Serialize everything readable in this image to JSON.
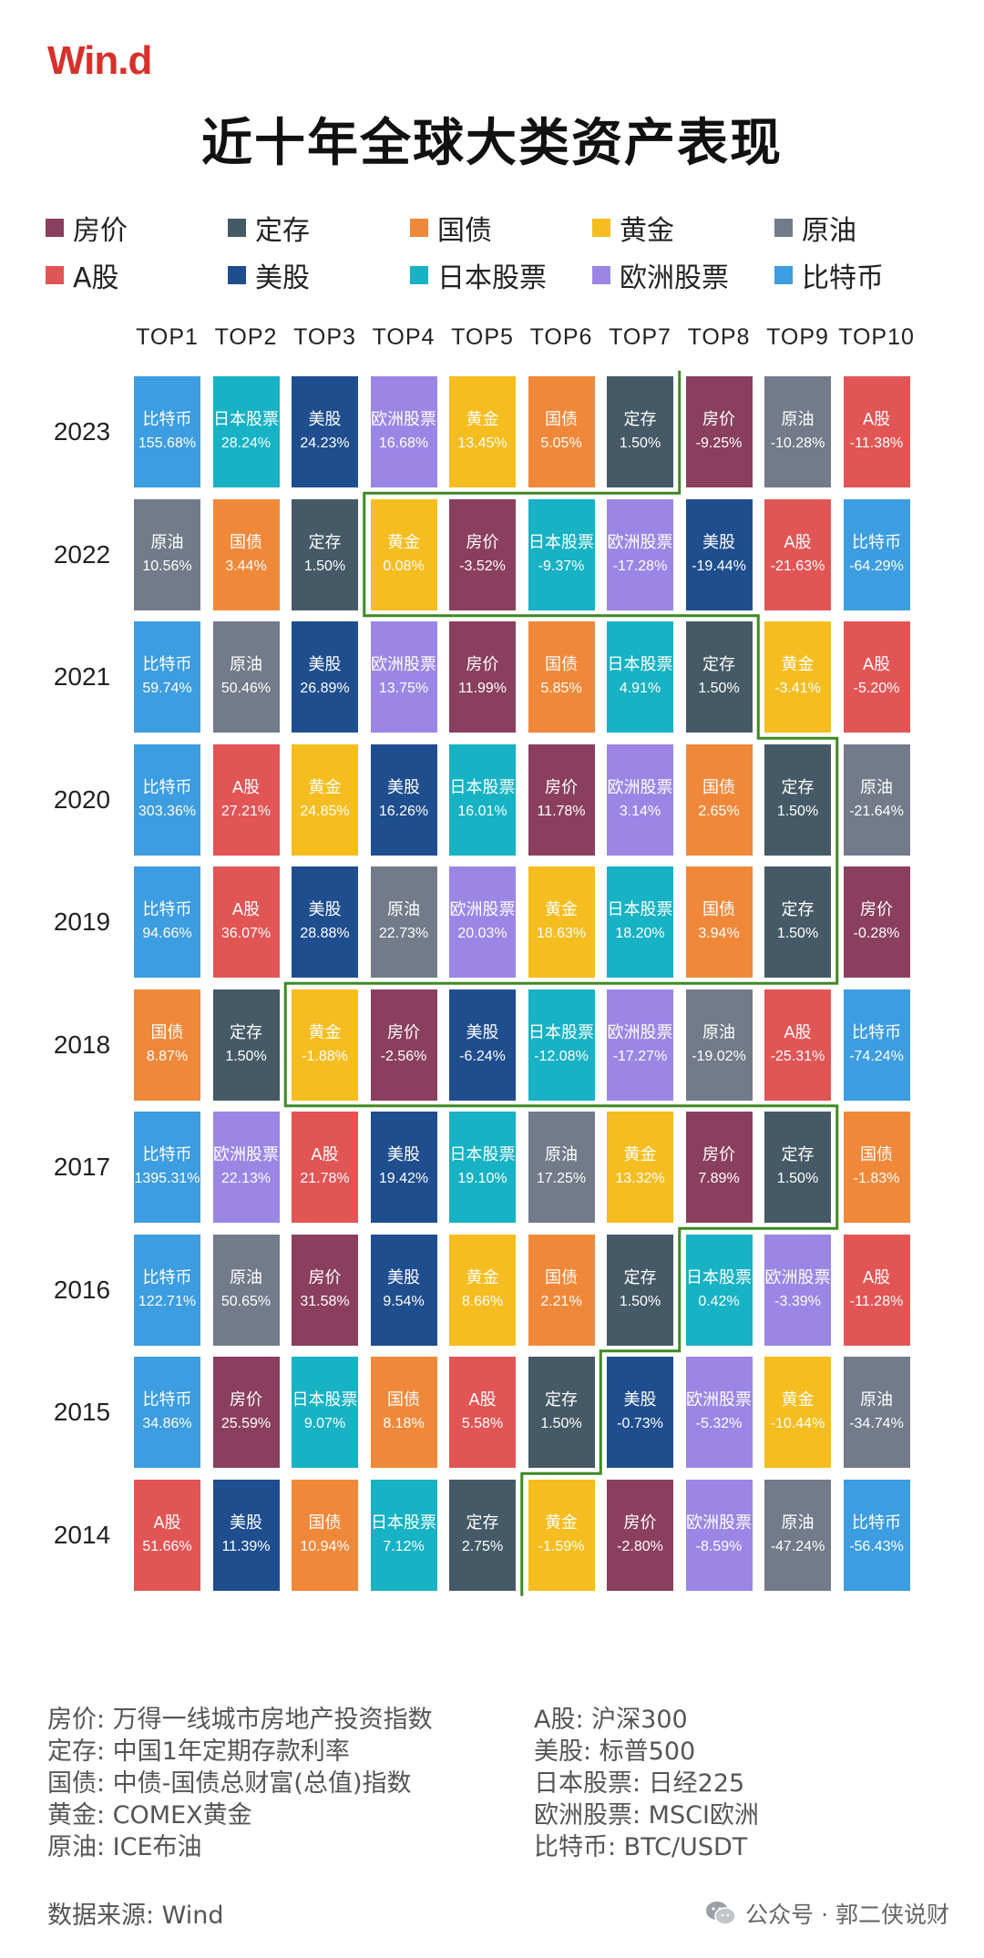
{
  "logo": "Win.d",
  "title": "近十年全球大类资产表现",
  "legend": [
    {
      "key": "house",
      "label": "房价",
      "color": "#8b3f5e"
    },
    {
      "key": "deposit",
      "label": "定存",
      "color": "#455a66"
    },
    {
      "key": "bond",
      "label": "国债",
      "color": "#f0883a"
    },
    {
      "key": "gold",
      "label": "黄金",
      "color": "#f5bd1f"
    },
    {
      "key": "oil",
      "label": "原油",
      "color": "#737b8a"
    },
    {
      "key": "ashare",
      "label": "A股",
      "color": "#e25555"
    },
    {
      "key": "us",
      "label": "美股",
      "color": "#1f4e8f"
    },
    {
      "key": "japan",
      "label": "日本股票",
      "color": "#17b2c4"
    },
    {
      "key": "europe",
      "label": "欧洲股票",
      "color": "#9b86e6"
    },
    {
      "key": "btc",
      "label": "比特币",
      "color": "#3c9de0"
    }
  ],
  "chart_data": {
    "type": "table",
    "title": "近十年全球大类资产表现",
    "columns": [
      "TOP1",
      "TOP2",
      "TOP3",
      "TOP4",
      "TOP5",
      "TOP6",
      "TOP7",
      "TOP8",
      "TOP9",
      "TOP10"
    ],
    "rows": [
      {
        "year": "2023",
        "cells": [
          {
            "asset": "btc",
            "name": "比特币",
            "value": "155.68%"
          },
          {
            "asset": "japan",
            "name": "日本股票",
            "value": "28.24%"
          },
          {
            "asset": "us",
            "name": "美股",
            "value": "24.23%"
          },
          {
            "asset": "europe",
            "name": "欧洲股票",
            "value": "16.68%"
          },
          {
            "asset": "gold",
            "name": "黄金",
            "value": "13.45%"
          },
          {
            "asset": "bond",
            "name": "国债",
            "value": "5.05%"
          },
          {
            "asset": "deposit",
            "name": "定存",
            "value": "1.50%"
          },
          {
            "asset": "house",
            "name": "房价",
            "value": "-9.25%"
          },
          {
            "asset": "oil",
            "name": "原油",
            "value": "-10.28%"
          },
          {
            "asset": "ashare",
            "name": "A股",
            "value": "-11.38%"
          }
        ]
      },
      {
        "year": "2022",
        "cells": [
          {
            "asset": "oil",
            "name": "原油",
            "value": "10.56%"
          },
          {
            "asset": "bond",
            "name": "国债",
            "value": "3.44%"
          },
          {
            "asset": "deposit",
            "name": "定存",
            "value": "1.50%"
          },
          {
            "asset": "gold",
            "name": "黄金",
            "value": "0.08%"
          },
          {
            "asset": "house",
            "name": "房价",
            "value": "-3.52%"
          },
          {
            "asset": "japan",
            "name": "日本股票",
            "value": "-9.37%"
          },
          {
            "asset": "europe",
            "name": "欧洲股票",
            "value": "-17.28%"
          },
          {
            "asset": "us",
            "name": "美股",
            "value": "-19.44%"
          },
          {
            "asset": "ashare",
            "name": "A股",
            "value": "-21.63%"
          },
          {
            "asset": "btc",
            "name": "比特币",
            "value": "-64.29%"
          }
        ]
      },
      {
        "year": "2021",
        "cells": [
          {
            "asset": "btc",
            "name": "比特币",
            "value": "59.74%"
          },
          {
            "asset": "oil",
            "name": "原油",
            "value": "50.46%"
          },
          {
            "asset": "us",
            "name": "美股",
            "value": "26.89%"
          },
          {
            "asset": "europe",
            "name": "欧洲股票",
            "value": "13.75%"
          },
          {
            "asset": "house",
            "name": "房价",
            "value": "11.99%"
          },
          {
            "asset": "bond",
            "name": "国债",
            "value": "5.85%"
          },
          {
            "asset": "japan",
            "name": "日本股票",
            "value": "4.91%"
          },
          {
            "asset": "deposit",
            "name": "定存",
            "value": "1.50%"
          },
          {
            "asset": "gold",
            "name": "黄金",
            "value": "-3.41%"
          },
          {
            "asset": "ashare",
            "name": "A股",
            "value": "-5.20%"
          }
        ]
      },
      {
        "year": "2020",
        "cells": [
          {
            "asset": "btc",
            "name": "比特币",
            "value": "303.36%"
          },
          {
            "asset": "ashare",
            "name": "A股",
            "value": "27.21%"
          },
          {
            "asset": "gold",
            "name": "黄金",
            "value": "24.85%"
          },
          {
            "asset": "us",
            "name": "美股",
            "value": "16.26%"
          },
          {
            "asset": "japan",
            "name": "日本股票",
            "value": "16.01%"
          },
          {
            "asset": "house",
            "name": "房价",
            "value": "11.78%"
          },
          {
            "asset": "europe",
            "name": "欧洲股票",
            "value": "3.14%"
          },
          {
            "asset": "bond",
            "name": "国债",
            "value": "2.65%"
          },
          {
            "asset": "deposit",
            "name": "定存",
            "value": "1.50%"
          },
          {
            "asset": "oil",
            "name": "原油",
            "value": "-21.64%"
          }
        ]
      },
      {
        "year": "2019",
        "cells": [
          {
            "asset": "btc",
            "name": "比特币",
            "value": "94.66%"
          },
          {
            "asset": "ashare",
            "name": "A股",
            "value": "36.07%"
          },
          {
            "asset": "us",
            "name": "美股",
            "value": "28.88%"
          },
          {
            "asset": "oil",
            "name": "原油",
            "value": "22.73%"
          },
          {
            "asset": "europe",
            "name": "欧洲股票",
            "value": "20.03%"
          },
          {
            "asset": "gold",
            "name": "黄金",
            "value": "18.63%"
          },
          {
            "asset": "japan",
            "name": "日本股票",
            "value": "18.20%"
          },
          {
            "asset": "bond",
            "name": "国债",
            "value": "3.94%"
          },
          {
            "asset": "deposit",
            "name": "定存",
            "value": "1.50%"
          },
          {
            "asset": "house",
            "name": "房价",
            "value": "-0.28%"
          }
        ]
      },
      {
        "year": "2018",
        "cells": [
          {
            "asset": "bond",
            "name": "国债",
            "value": "8.87%"
          },
          {
            "asset": "deposit",
            "name": "定存",
            "value": "1.50%"
          },
          {
            "asset": "gold",
            "name": "黄金",
            "value": "-1.88%"
          },
          {
            "asset": "house",
            "name": "房价",
            "value": "-2.56%"
          },
          {
            "asset": "us",
            "name": "美股",
            "value": "-6.24%"
          },
          {
            "asset": "japan",
            "name": "日本股票",
            "value": "-12.08%"
          },
          {
            "asset": "europe",
            "name": "欧洲股票",
            "value": "-17.27%"
          },
          {
            "asset": "oil",
            "name": "原油",
            "value": "-19.02%"
          },
          {
            "asset": "ashare",
            "name": "A股",
            "value": "-25.31%"
          },
          {
            "asset": "btc",
            "name": "比特币",
            "value": "-74.24%"
          }
        ]
      },
      {
        "year": "2017",
        "cells": [
          {
            "asset": "btc",
            "name": "比特币",
            "value": "1395.31%"
          },
          {
            "asset": "europe",
            "name": "欧洲股票",
            "value": "22.13%"
          },
          {
            "asset": "ashare",
            "name": "A股",
            "value": "21.78%"
          },
          {
            "asset": "us",
            "name": "美股",
            "value": "19.42%"
          },
          {
            "asset": "japan",
            "name": "日本股票",
            "value": "19.10%"
          },
          {
            "asset": "oil",
            "name": "原油",
            "value": "17.25%"
          },
          {
            "asset": "gold",
            "name": "黄金",
            "value": "13.32%"
          },
          {
            "asset": "house",
            "name": "房价",
            "value": "7.89%"
          },
          {
            "asset": "deposit",
            "name": "定存",
            "value": "1.50%"
          },
          {
            "asset": "bond",
            "name": "国债",
            "value": "-1.83%"
          }
        ]
      },
      {
        "year": "2016",
        "cells": [
          {
            "asset": "btc",
            "name": "比特币",
            "value": "122.71%"
          },
          {
            "asset": "oil",
            "name": "原油",
            "value": "50.65%"
          },
          {
            "asset": "house",
            "name": "房价",
            "value": "31.58%"
          },
          {
            "asset": "us",
            "name": "美股",
            "value": "9.54%"
          },
          {
            "asset": "gold",
            "name": "黄金",
            "value": "8.66%"
          },
          {
            "asset": "bond",
            "name": "国债",
            "value": "2.21%"
          },
          {
            "asset": "deposit",
            "name": "定存",
            "value": "1.50%"
          },
          {
            "asset": "japan",
            "name": "日本股票",
            "value": "0.42%"
          },
          {
            "asset": "europe",
            "name": "欧洲股票",
            "value": "-3.39%"
          },
          {
            "asset": "ashare",
            "name": "A股",
            "value": "-11.28%"
          }
        ]
      },
      {
        "year": "2015",
        "cells": [
          {
            "asset": "btc",
            "name": "比特币",
            "value": "34.86%"
          },
          {
            "asset": "house",
            "name": "房价",
            "value": "25.59%"
          },
          {
            "asset": "japan",
            "name": "日本股票",
            "value": "9.07%"
          },
          {
            "asset": "bond",
            "name": "国债",
            "value": "8.18%"
          },
          {
            "asset": "ashare",
            "name": "A股",
            "value": "5.58%"
          },
          {
            "asset": "deposit",
            "name": "定存",
            "value": "1.50%"
          },
          {
            "asset": "us",
            "name": "美股",
            "value": "-0.73%"
          },
          {
            "asset": "europe",
            "name": "欧洲股票",
            "value": "-5.32%"
          },
          {
            "asset": "gold",
            "name": "黄金",
            "value": "-10.44%"
          },
          {
            "asset": "oil",
            "name": "原油",
            "value": "-34.74%"
          }
        ]
      },
      {
        "year": "2014",
        "cells": [
          {
            "asset": "ashare",
            "name": "A股",
            "value": "51.66%"
          },
          {
            "asset": "us",
            "name": "美股",
            "value": "11.39%"
          },
          {
            "asset": "bond",
            "name": "国债",
            "value": "10.94%"
          },
          {
            "asset": "japan",
            "name": "日本股票",
            "value": "7.12%"
          },
          {
            "asset": "deposit",
            "name": "定存",
            "value": "2.75%"
          },
          {
            "asset": "gold",
            "name": "黄金",
            "value": "-1.59%"
          },
          {
            "asset": "house",
            "name": "房价",
            "value": "-2.80%"
          },
          {
            "asset": "europe",
            "name": "欧洲股票",
            "value": "-8.59%"
          },
          {
            "asset": "oil",
            "name": "原油",
            "value": "-47.24%"
          },
          {
            "asset": "btc",
            "name": "比特币",
            "value": "-56.43%"
          }
        ]
      }
    ],
    "deposit_rank_path_color": "#3e8a25"
  },
  "notes": [
    "房价: 万得一线城市房地产投资指数",
    "定存: 中国1年定期存款利率",
    "国债: 中债-国债总财富(总值)指数",
    "黄金: COMEX黄金",
    "原油: ICE布油",
    "A股: 沪深300",
    "美股: 标普500",
    "日本股票: 日经225",
    "欧洲股票: MSCI欧洲",
    "比特币: BTC/USDT"
  ],
  "source": "数据来源: Wind",
  "footer": "公众号 · 郭二侠说财"
}
